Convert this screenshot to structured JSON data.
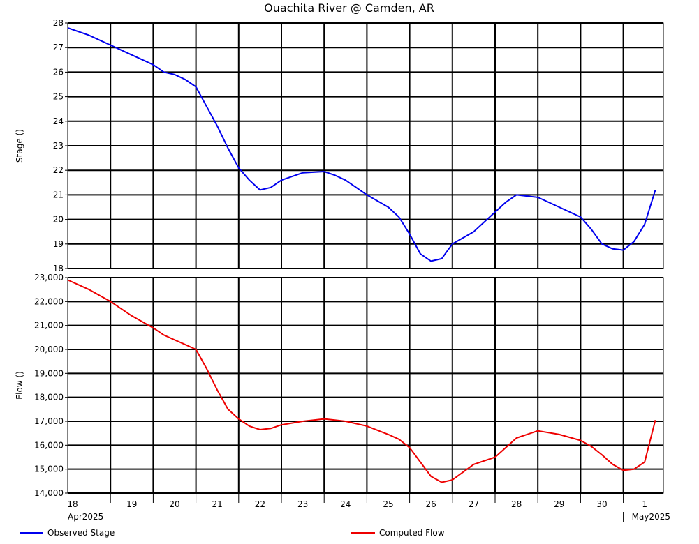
{
  "chart_data": {
    "type": "line",
    "title": "Ouachita River @ Camden, AR",
    "x_labels": [
      "18",
      "19",
      "20",
      "21",
      "22",
      "23",
      "24",
      "25",
      "26",
      "27",
      "28",
      "29",
      "30",
      "1"
    ],
    "month_labels": [
      "Apr2025",
      "May2025"
    ],
    "grid": true,
    "legend_position": "bottom",
    "panels": [
      {
        "name": "stage",
        "ylabel": "Stage ()",
        "ylim": [
          18,
          28
        ],
        "yticks": [
          18,
          19,
          20,
          21,
          22,
          23,
          24,
          25,
          26,
          27,
          28
        ],
        "ytick_labels": [
          "18",
          "19",
          "20",
          "21",
          "22",
          "23",
          "24",
          "25",
          "26",
          "27",
          "28"
        ],
        "series": [
          {
            "name": "Observed Stage",
            "color": "#0000ee",
            "x": [
              "2025-04-18 00:00",
              "2025-04-18 12:00",
              "2025-04-19 00:00",
              "2025-04-19 12:00",
              "2025-04-20 00:00",
              "2025-04-20 06:00",
              "2025-04-20 12:00",
              "2025-04-20 18:00",
              "2025-04-21 00:00",
              "2025-04-21 06:00",
              "2025-04-21 12:00",
              "2025-04-21 18:00",
              "2025-04-22 00:00",
              "2025-04-22 06:00",
              "2025-04-22 12:00",
              "2025-04-22 18:00",
              "2025-04-23 00:00",
              "2025-04-23 12:00",
              "2025-04-24 00:00",
              "2025-04-24 06:00",
              "2025-04-24 12:00",
              "2025-04-25 00:00",
              "2025-04-25 12:00",
              "2025-04-25 18:00",
              "2025-04-26 00:00",
              "2025-04-26 06:00",
              "2025-04-26 12:00",
              "2025-04-26 18:00",
              "2025-04-27 00:00",
              "2025-04-27 12:00",
              "2025-04-28 00:00",
              "2025-04-28 06:00",
              "2025-04-28 12:00",
              "2025-04-29 00:00",
              "2025-04-29 12:00",
              "2025-04-30 00:00",
              "2025-04-30 06:00",
              "2025-04-30 12:00",
              "2025-04-30 18:00",
              "2025-05-01 00:00",
              "2025-05-01 06:00",
              "2025-05-01 12:00",
              "2025-05-01 18:00"
            ],
            "y": [
              27.8,
              27.5,
              27.1,
              26.7,
              26.3,
              26.0,
              25.9,
              25.7,
              25.4,
              24.6,
              23.8,
              22.9,
              22.1,
              21.6,
              21.2,
              21.3,
              21.6,
              21.9,
              21.95,
              21.8,
              21.6,
              21.0,
              20.5,
              20.1,
              19.4,
              18.6,
              18.3,
              18.4,
              19.0,
              19.5,
              20.3,
              20.7,
              21.0,
              20.9,
              20.5,
              20.1,
              19.6,
              19.0,
              18.8,
              18.75,
              19.1,
              19.8,
              21.2
            ]
          }
        ]
      },
      {
        "name": "flow",
        "ylabel": "Flow ()",
        "ylim": [
          14000,
          23000
        ],
        "yticks": [
          14000,
          15000,
          16000,
          17000,
          18000,
          19000,
          20000,
          21000,
          22000,
          23000
        ],
        "ytick_labels": [
          "14,000",
          "15,000",
          "16,000",
          "17,000",
          "18,000",
          "19,000",
          "20,000",
          "21,000",
          "22,000",
          "23,000"
        ],
        "series": [
          {
            "name": "Computed Flow",
            "color": "#ee0000",
            "x": [
              "2025-04-18 00:00",
              "2025-04-18 12:00",
              "2025-04-19 00:00",
              "2025-04-19 12:00",
              "2025-04-20 00:00",
              "2025-04-20 06:00",
              "2025-04-20 12:00",
              "2025-04-20 18:00",
              "2025-04-21 00:00",
              "2025-04-21 06:00",
              "2025-04-21 12:00",
              "2025-04-21 18:00",
              "2025-04-22 00:00",
              "2025-04-22 06:00",
              "2025-04-22 12:00",
              "2025-04-22 18:00",
              "2025-04-23 00:00",
              "2025-04-23 12:00",
              "2025-04-24 00:00",
              "2025-04-24 06:00",
              "2025-04-24 12:00",
              "2025-04-25 00:00",
              "2025-04-25 12:00",
              "2025-04-25 18:00",
              "2025-04-26 00:00",
              "2025-04-26 06:00",
              "2025-04-26 12:00",
              "2025-04-26 18:00",
              "2025-04-27 00:00",
              "2025-04-27 12:00",
              "2025-04-28 00:00",
              "2025-04-28 06:00",
              "2025-04-28 12:00",
              "2025-04-29 00:00",
              "2025-04-29 12:00",
              "2025-04-30 00:00",
              "2025-04-30 06:00",
              "2025-04-30 12:00",
              "2025-04-30 18:00",
              "2025-05-01 00:00",
              "2025-05-01 06:00",
              "2025-05-01 12:00",
              "2025-05-01 18:00"
            ],
            "y": [
              22900,
              22500,
              22000,
              21400,
              20900,
              20600,
              20400,
              20200,
              20000,
              19200,
              18300,
              17500,
              17100,
              16800,
              16650,
              16700,
              16850,
              17000,
              17100,
              17050,
              17000,
              16800,
              16450,
              16250,
              15900,
              15300,
              14700,
              14450,
              14550,
              15200,
              15500,
              15900,
              16300,
              16600,
              16450,
              16200,
              15950,
              15600,
              15200,
              14950,
              15000,
              15300,
              17050
            ]
          }
        ]
      }
    ],
    "legend": [
      "Observed Stage",
      "Computed Flow"
    ]
  }
}
